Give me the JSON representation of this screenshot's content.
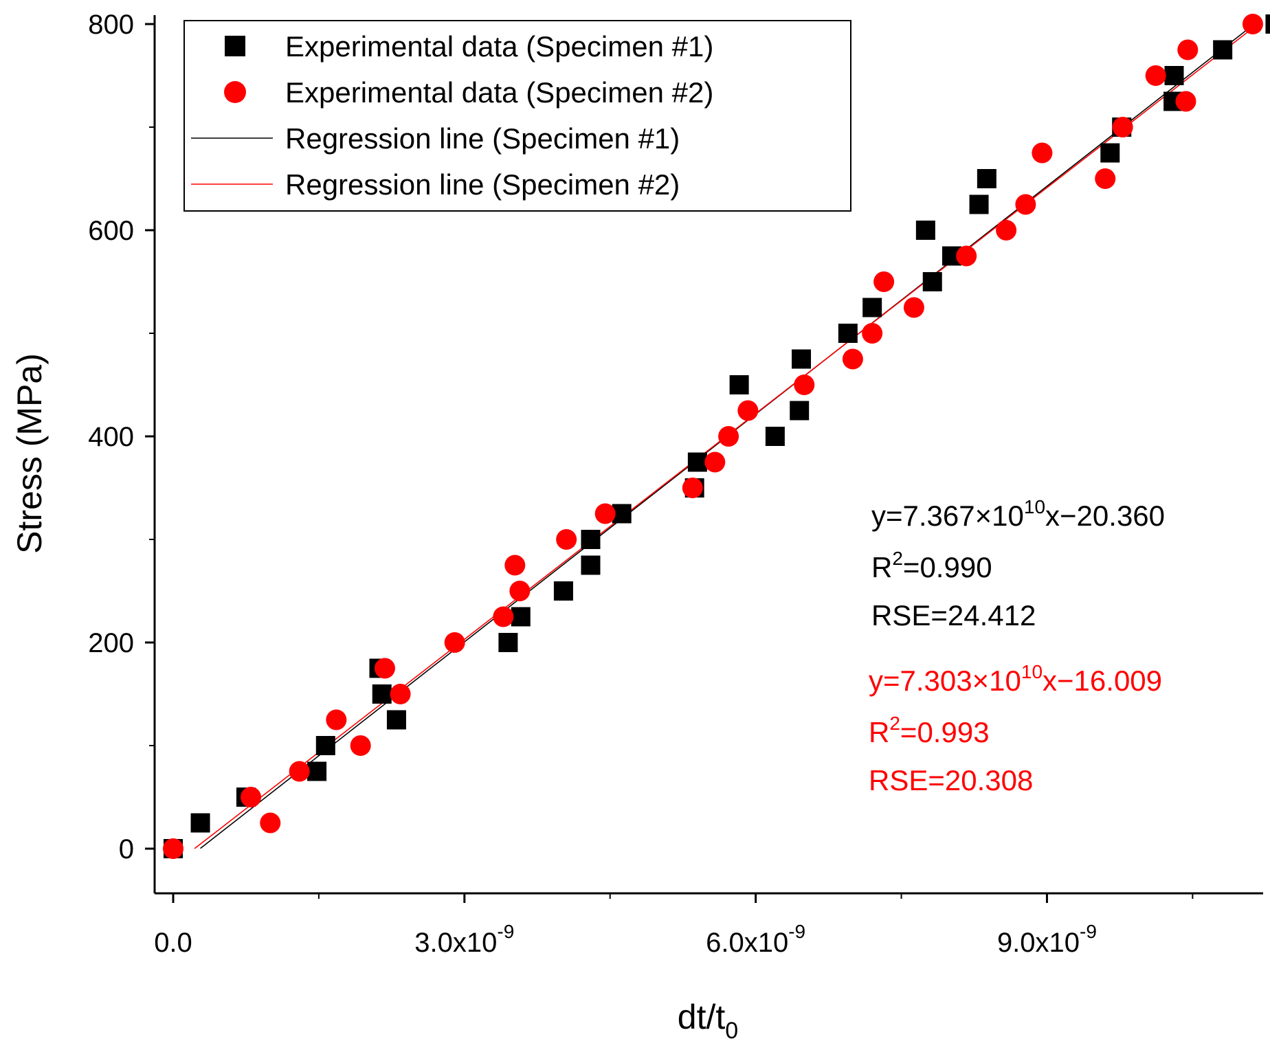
{
  "chart_data": {
    "type": "scatter",
    "xlabel": "dt/t",
    "xlabel_sub": "0",
    "ylabel": "Stress (MPa)",
    "xlim": [
      -1.9e-10,
      1.145e-08
    ],
    "ylim": [
      -45,
      810
    ],
    "x_ticks": [
      {
        "value": 0,
        "base": "0.0",
        "exp": ""
      },
      {
        "value": 3e-09,
        "base": "3.0x10",
        "exp": "-9"
      },
      {
        "value": 6e-09,
        "base": "6.0x10",
        "exp": "-9"
      },
      {
        "value": 9e-09,
        "base": "9.0x10",
        "exp": "-9"
      }
    ],
    "y_ticks": [
      0,
      200,
      400,
      600,
      800
    ],
    "legend": [
      {
        "label": "Experimental data (Specimen #1)",
        "marker": "square",
        "color": "#000000"
      },
      {
        "label": "Experimental data (Specimen #2)",
        "marker": "circle",
        "color": "#ff0000"
      },
      {
        "label": "Regression line (Specimen #1)",
        "marker": "line",
        "color": "#000000"
      },
      {
        "label": "Regression line (Specimen #2)",
        "marker": "line",
        "color": "#ff0000"
      }
    ],
    "series": [
      {
        "name": "Experimental data (Specimen #1)",
        "marker": "square",
        "color": "#000000",
        "points": [
          [
            0,
            0
          ],
          [
            2.8e-10,
            25
          ],
          [
            7.5e-10,
            50
          ],
          [
            1.48e-09,
            75
          ],
          [
            1.57e-09,
            100
          ],
          [
            2.3e-09,
            125
          ],
          [
            2.15e-09,
            150
          ],
          [
            2.12e-09,
            175
          ],
          [
            3.45e-09,
            200
          ],
          [
            3.58e-09,
            225
          ],
          [
            4.02e-09,
            250
          ],
          [
            4.3e-09,
            275
          ],
          [
            4.3e-09,
            300
          ],
          [
            4.62e-09,
            325
          ],
          [
            5.37e-09,
            350
          ],
          [
            5.4e-09,
            375
          ],
          [
            6.2e-09,
            400
          ],
          [
            6.45e-09,
            425
          ],
          [
            5.83e-09,
            450
          ],
          [
            6.47e-09,
            475
          ],
          [
            6.95e-09,
            500
          ],
          [
            7.2e-09,
            525
          ],
          [
            7.82e-09,
            550
          ],
          [
            8.02e-09,
            575
          ],
          [
            7.75e-09,
            600
          ],
          [
            8.3e-09,
            625
          ],
          [
            8.38e-09,
            650
          ],
          [
            9.65e-09,
            675
          ],
          [
            9.77e-09,
            700
          ],
          [
            1.03e-08,
            725
          ],
          [
            1.031e-08,
            750
          ],
          [
            1.081e-08,
            775
          ],
          [
            1.135e-08,
            800
          ]
        ]
      },
      {
        "name": "Experimental data (Specimen #2)",
        "marker": "circle",
        "color": "#ff0000",
        "points": [
          [
            0,
            0
          ],
          [
            1e-09,
            25
          ],
          [
            8e-10,
            50
          ],
          [
            1.3e-09,
            75
          ],
          [
            1.93e-09,
            100
          ],
          [
            1.68e-09,
            125
          ],
          [
            2.34e-09,
            150
          ],
          [
            2.18e-09,
            175
          ],
          [
            2.9e-09,
            200
          ],
          [
            3.4e-09,
            225
          ],
          [
            3.57e-09,
            250
          ],
          [
            3.52e-09,
            275
          ],
          [
            4.05e-09,
            300
          ],
          [
            4.45e-09,
            325
          ],
          [
            5.35e-09,
            350
          ],
          [
            5.58e-09,
            375
          ],
          [
            5.72e-09,
            400
          ],
          [
            5.92e-09,
            425
          ],
          [
            6.5e-09,
            450
          ],
          [
            7e-09,
            475
          ],
          [
            7.2e-09,
            500
          ],
          [
            7.63e-09,
            525
          ],
          [
            7.32e-09,
            550
          ],
          [
            8.17e-09,
            575
          ],
          [
            8.58e-09,
            600
          ],
          [
            8.78e-09,
            625
          ],
          [
            9.6e-09,
            650
          ],
          [
            8.95e-09,
            675
          ],
          [
            9.78e-09,
            700
          ],
          [
            1.043e-08,
            725
          ],
          [
            1.012e-08,
            750
          ],
          [
            1.045e-08,
            775
          ],
          [
            1.112e-08,
            800
          ]
        ]
      },
      {
        "name": "Regression line (Specimen #1)",
        "marker": "line",
        "color": "#000000",
        "slope": 73670000000.0,
        "intercept": -20.36,
        "x_range": [
          2.8e-10,
          1.118e-08
        ]
      },
      {
        "name": "Regression line (Specimen #2)",
        "marker": "line",
        "color": "#ff0000",
        "slope": 73030000000.0,
        "intercept": -16.009,
        "x_range": [
          2.2e-10,
          1.118e-08
        ]
      }
    ],
    "annotations": [
      {
        "color": "#000000",
        "eq_prefix": "y=7.367×10",
        "eq_exp": "10",
        "eq_suffix": "x−20.360",
        "r2_prefix": "R",
        "r2_exp": "2",
        "r2_value": "=0.990",
        "rse": "RSE=24.412"
      },
      {
        "color": "#ff0000",
        "eq_prefix": "y=7.303×10",
        "eq_exp": "10",
        "eq_suffix": "x−16.009",
        "r2_prefix": "R",
        "r2_exp": "2",
        "r2_value": "=0.993",
        "rse": "RSE=20.308"
      }
    ]
  }
}
